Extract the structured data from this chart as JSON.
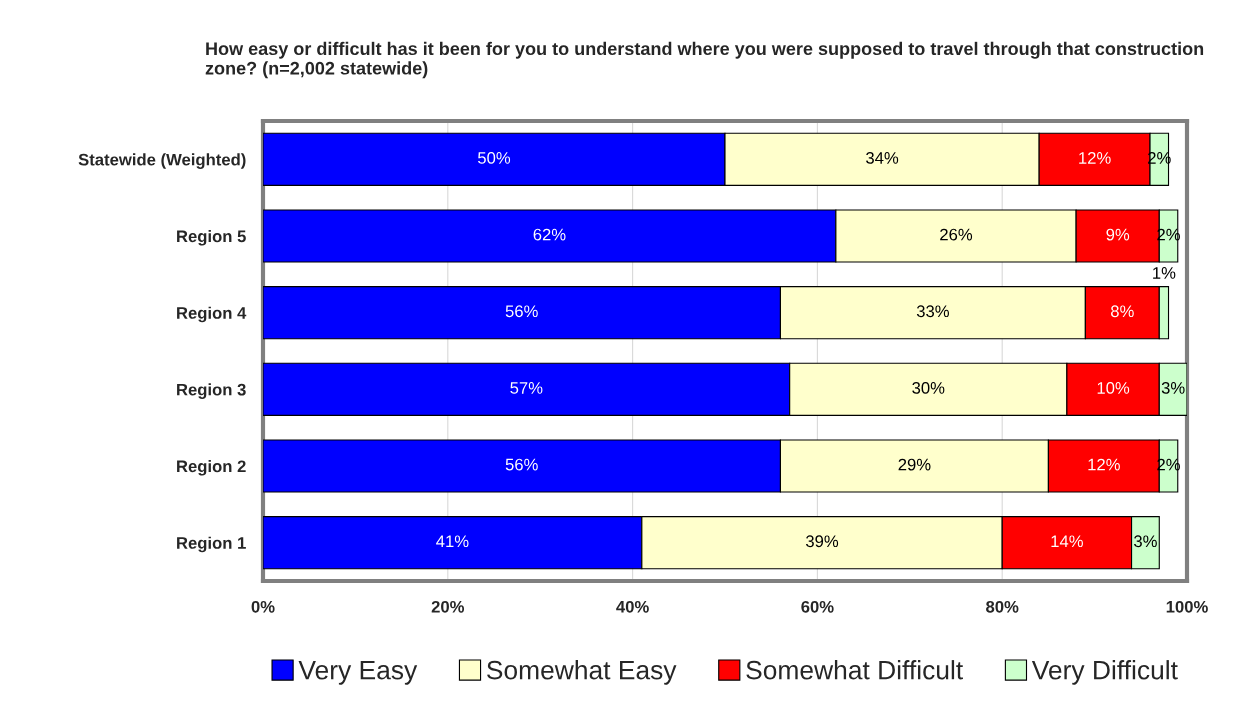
{
  "chart_data": {
    "type": "bar",
    "orientation": "horizontal",
    "stacked": true,
    "title": "How easy or difficult has it been for you to understand where you were supposed to travel through that construction zone? (n=2,002 statewide)",
    "categories": [
      "Statewide (Weighted)",
      "Region 5",
      "Region 4",
      "Region 3",
      "Region 2",
      "Region 1"
    ],
    "series": [
      {
        "name": "Very Easy",
        "color": "#0000ff",
        "values": [
          50,
          62,
          56,
          57,
          56,
          41
        ],
        "value_labels": [
          "50%",
          "62%",
          "56%",
          "57%",
          "56%",
          "41%"
        ]
      },
      {
        "name": "Somewhat Easy",
        "color": "#ffffcc",
        "values": [
          34,
          26,
          33,
          30,
          29,
          39
        ],
        "value_labels": [
          "34%",
          "26%",
          "33%",
          "30%",
          "29%",
          "39%"
        ]
      },
      {
        "name": "Somewhat Difficult",
        "color": "#ff0000",
        "values": [
          12,
          9,
          8,
          10,
          12,
          14
        ],
        "value_labels": [
          "12%",
          "9%",
          "8%",
          "10%",
          "12%",
          "14%"
        ]
      },
      {
        "name": "Very Difficult",
        "color": "#ccffcc",
        "values": [
          2,
          2,
          1,
          3,
          2,
          3
        ],
        "value_labels": [
          "2%",
          "2%",
          "1%",
          "3%",
          "2%",
          "3%"
        ]
      }
    ],
    "xlim": [
      0,
      100
    ],
    "xticks": [
      {
        "value": 0,
        "label": "0%"
      },
      {
        "value": 20,
        "label": "20%"
      },
      {
        "value": 40,
        "label": "40%"
      },
      {
        "value": 60,
        "label": "60%"
      },
      {
        "value": 80,
        "label": "80%"
      },
      {
        "value": 100,
        "label": "100%"
      }
    ],
    "grid": "x",
    "legend": "bottom"
  }
}
